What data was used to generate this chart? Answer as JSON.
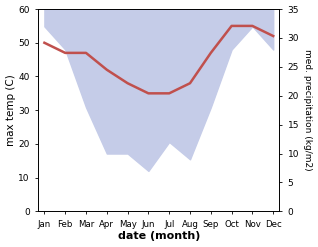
{
  "months": [
    "Jan",
    "Feb",
    "Mar",
    "Apr",
    "May",
    "Jun",
    "Jul",
    "Aug",
    "Sep",
    "Oct",
    "Nov",
    "Dec"
  ],
  "temp": [
    50,
    47,
    47,
    42,
    38,
    35,
    35,
    38,
    47,
    55,
    55,
    52
  ],
  "precip_right": [
    32,
    28,
    18,
    10,
    10,
    7,
    12,
    9,
    18,
    28,
    32,
    28
  ],
  "temp_color": "#c0504d",
  "precip_fill_color": "#c5cce8",
  "precip_line_color": "#aab4d8",
  "ylabel_left": "max temp (C)",
  "ylabel_right": "med. precipitation (kg/m2)",
  "xlabel": "date (month)",
  "ylim_left": [
    0,
    60
  ],
  "ylim_right": [
    0,
    35
  ],
  "yticks_left": [
    0,
    10,
    20,
    30,
    40,
    50,
    60
  ],
  "yticks_right": [
    0,
    5,
    10,
    15,
    20,
    25,
    30,
    35
  ],
  "bg_color": "#ffffff",
  "temp_linewidth": 1.8,
  "figsize": [
    3.18,
    2.47
  ],
  "dpi": 100
}
